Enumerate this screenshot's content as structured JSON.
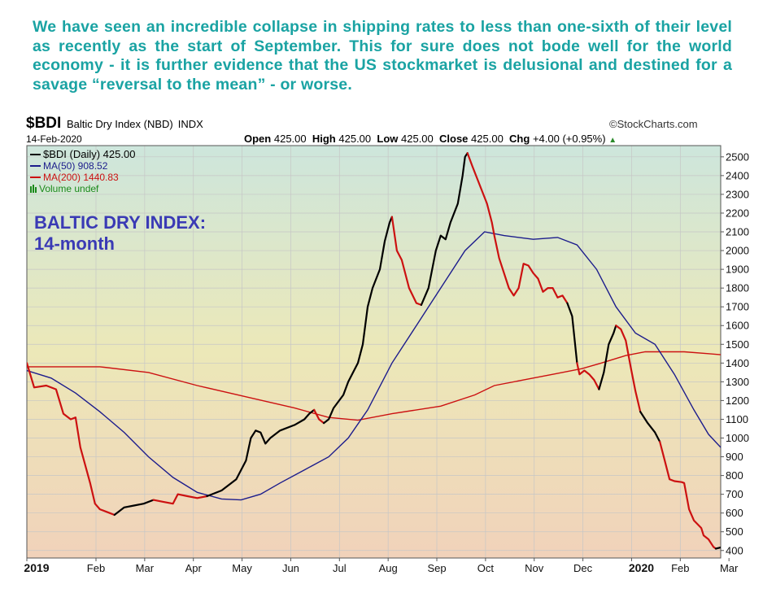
{
  "commentary": "We have seen an incredible collapse in shipping rates to less than one-sixth of their level as recently as the start of September. This for sure does not bode well for the world economy - it is further evidence that the US stockmarket is delusional and destined for a savage “reversal to the mean” - or worse.",
  "header": {
    "symbol": "$BDI",
    "name": "Baltic Dry Index (NBD)",
    "exchange": "INDX",
    "date": "14-Feb-2020",
    "credit": "©StockCharts.com",
    "open_label": "Open",
    "open": "425.00",
    "high_label": "High",
    "high": "425.00",
    "low_label": "Low",
    "low": "425.00",
    "close_label": "Close",
    "close": "425.00",
    "chg_label": "Chg",
    "chg": "+4.00 (+0.95%)"
  },
  "legend": {
    "items": [
      {
        "label": "$BDI (Daily) 425.00",
        "color": "#000000"
      },
      {
        "label": "MA(50) 908.52",
        "color": "#1c1c8c"
      },
      {
        "label": "MA(200) 1440.83",
        "color": "#cc1111"
      },
      {
        "label": "Volume undef",
        "color": "#1a8a1a"
      }
    ]
  },
  "chart_data": {
    "type": "line",
    "title": "BALTIC DRY INDEX:",
    "subtitle": "14-month",
    "title_color": "#3a3ab5",
    "ylim": [
      360,
      2560
    ],
    "yticks": [
      400,
      500,
      600,
      700,
      800,
      900,
      1000,
      1100,
      1200,
      1300,
      1400,
      1500,
      1600,
      1700,
      1800,
      1900,
      2000,
      2100,
      2200,
      2300,
      2400,
      2500
    ],
    "xlim": [
      0,
      14.25
    ],
    "xticks": [
      {
        "pos": 0,
        "label": "2019",
        "bold": true
      },
      {
        "pos": 1.42,
        "label": "Feb"
      },
      {
        "pos": 2.42,
        "label": "Mar"
      },
      {
        "pos": 3.42,
        "label": "Apr"
      },
      {
        "pos": 4.42,
        "label": "May"
      },
      {
        "pos": 5.42,
        "label": "Jun"
      },
      {
        "pos": 6.42,
        "label": "Jul"
      },
      {
        "pos": 7.42,
        "label": "Aug"
      },
      {
        "pos": 8.42,
        "label": "Sep"
      },
      {
        "pos": 9.42,
        "label": "Oct"
      },
      {
        "pos": 10.42,
        "label": "Nov"
      },
      {
        "pos": 11.42,
        "label": "Dec"
      },
      {
        "pos": 12.42,
        "label": "2020",
        "bold": true
      },
      {
        "pos": 13.42,
        "label": "Feb"
      },
      {
        "pos": 14.42,
        "label": "Mar"
      }
    ],
    "series": [
      {
        "name": "$BDI (Daily)",
        "segments": [
          {
            "color": "#cc1111",
            "points": [
              [
                0,
                1400
              ],
              [
                0.15,
                1270
              ],
              [
                0.4,
                1280
              ],
              [
                0.6,
                1260
              ],
              [
                0.75,
                1130
              ],
              [
                0.9,
                1100
              ],
              [
                1.0,
                1110
              ],
              [
                1.1,
                950
              ],
              [
                1.3,
                760
              ],
              [
                1.4,
                650
              ],
              [
                1.5,
                620
              ],
              [
                1.7,
                600
              ],
              [
                1.8,
                590
              ]
            ]
          },
          {
            "color": "#000000",
            "points": [
              [
                1.8,
                590
              ],
              [
                2.0,
                630
              ],
              [
                2.2,
                640
              ],
              [
                2.4,
                650
              ],
              [
                2.6,
                670
              ]
            ]
          },
          {
            "color": "#cc1111",
            "points": [
              [
                2.6,
                670
              ],
              [
                2.8,
                660
              ],
              [
                3.0,
                650
              ],
              [
                3.1,
                700
              ],
              [
                3.3,
                690
              ],
              [
                3.5,
                680
              ],
              [
                3.7,
                690
              ]
            ]
          },
          {
            "color": "#000000",
            "points": [
              [
                3.7,
                690
              ],
              [
                4.0,
                720
              ],
              [
                4.3,
                780
              ],
              [
                4.5,
                880
              ],
              [
                4.6,
                1000
              ],
              [
                4.7,
                1040
              ],
              [
                4.8,
                1030
              ],
              [
                4.9,
                970
              ],
              [
                5.0,
                1000
              ],
              [
                5.2,
                1040
              ],
              [
                5.5,
                1070
              ],
              [
                5.7,
                1100
              ],
              [
                5.8,
                1130
              ],
              [
                5.9,
                1150
              ]
            ]
          },
          {
            "color": "#cc1111",
            "points": [
              [
                5.9,
                1150
              ],
              [
                6.0,
                1100
              ],
              [
                6.1,
                1080
              ]
            ]
          },
          {
            "color": "#000000",
            "points": [
              [
                6.1,
                1080
              ],
              [
                6.2,
                1100
              ],
              [
                6.3,
                1160
              ],
              [
                6.5,
                1230
              ],
              [
                6.6,
                1300
              ],
              [
                6.8,
                1400
              ],
              [
                6.9,
                1500
              ],
              [
                7.0,
                1700
              ],
              [
                7.1,
                1800
              ],
              [
                7.25,
                1900
              ],
              [
                7.35,
                2050
              ],
              [
                7.45,
                2150
              ],
              [
                7.5,
                2180
              ]
            ]
          },
          {
            "color": "#cc1111",
            "points": [
              [
                7.5,
                2180
              ],
              [
                7.6,
                2000
              ],
              [
                7.7,
                1950
              ],
              [
                7.85,
                1800
              ],
              [
                8.0,
                1720
              ],
              [
                8.1,
                1710
              ]
            ]
          },
          {
            "color": "#000000",
            "points": [
              [
                8.1,
                1710
              ],
              [
                8.25,
                1800
              ],
              [
                8.4,
                2000
              ],
              [
                8.5,
                2080
              ],
              [
                8.6,
                2060
              ],
              [
                8.7,
                2150
              ],
              [
                8.85,
                2250
              ],
              [
                8.95,
                2400
              ],
              [
                9.0,
                2500
              ],
              [
                9.05,
                2520
              ]
            ]
          },
          {
            "color": "#cc1111",
            "points": [
              [
                9.05,
                2520
              ],
              [
                9.15,
                2450
              ],
              [
                9.3,
                2350
              ],
              [
                9.45,
                2250
              ],
              [
                9.55,
                2150
              ],
              [
                9.6,
                2080
              ],
              [
                9.7,
                1960
              ],
              [
                9.8,
                1880
              ],
              [
                9.9,
                1800
              ],
              [
                10.0,
                1760
              ],
              [
                10.1,
                1800
              ],
              [
                10.2,
                1930
              ],
              [
                10.3,
                1920
              ],
              [
                10.4,
                1880
              ],
              [
                10.5,
                1850
              ],
              [
                10.6,
                1780
              ],
              [
                10.7,
                1800
              ],
              [
                10.8,
                1800
              ],
              [
                10.9,
                1750
              ],
              [
                11.0,
                1760
              ],
              [
                11.1,
                1720
              ]
            ]
          },
          {
            "color": "#000000",
            "points": [
              [
                11.1,
                1720
              ],
              [
                11.2,
                1650
              ],
              [
                11.3,
                1400
              ]
            ]
          },
          {
            "color": "#cc1111",
            "points": [
              [
                11.3,
                1400
              ],
              [
                11.35,
                1340
              ],
              [
                11.45,
                1360
              ],
              [
                11.55,
                1340
              ],
              [
                11.65,
                1310
              ],
              [
                11.75,
                1260
              ]
            ]
          },
          {
            "color": "#000000",
            "points": [
              [
                11.75,
                1260
              ],
              [
                11.85,
                1350
              ],
              [
                11.95,
                1500
              ],
              [
                12.05,
                1560
              ],
              [
                12.1,
                1600
              ]
            ]
          },
          {
            "color": "#cc1111",
            "points": [
              [
                12.1,
                1600
              ],
              [
                12.2,
                1580
              ],
              [
                12.3,
                1520
              ],
              [
                12.4,
                1380
              ],
              [
                12.5,
                1250
              ],
              [
                12.6,
                1140
              ]
            ]
          },
          {
            "color": "#000000",
            "points": [
              [
                12.6,
                1140
              ],
              [
                12.75,
                1080
              ],
              [
                12.9,
                1030
              ],
              [
                13.0,
                980
              ]
            ]
          },
          {
            "color": "#cc1111",
            "points": [
              [
                13.0,
                980
              ],
              [
                13.1,
                880
              ],
              [
                13.2,
                780
              ],
              [
                13.3,
                770
              ],
              [
                13.45,
                765
              ],
              [
                13.5,
                760
              ],
              [
                13.6,
                620
              ],
              [
                13.7,
                560
              ],
              [
                13.85,
                520
              ],
              [
                13.9,
                480
              ],
              [
                14.0,
                460
              ],
              [
                14.1,
                420
              ],
              [
                14.15,
                410
              ]
            ]
          },
          {
            "color": "#000000",
            "points": [
              [
                14.15,
                410
              ],
              [
                14.3,
                420
              ],
              [
                14.45,
                425
              ]
            ]
          }
        ]
      },
      {
        "name": "MA(50)",
        "color": "#1c1c8c",
        "points": [
          [
            0,
            1360
          ],
          [
            0.5,
            1320
          ],
          [
            1.0,
            1240
          ],
          [
            1.5,
            1140
          ],
          [
            2.0,
            1030
          ],
          [
            2.5,
            900
          ],
          [
            3.0,
            790
          ],
          [
            3.5,
            710
          ],
          [
            4.0,
            675
          ],
          [
            4.4,
            670
          ],
          [
            4.8,
            700
          ],
          [
            5.2,
            760
          ],
          [
            5.7,
            830
          ],
          [
            6.2,
            900
          ],
          [
            6.6,
            1000
          ],
          [
            7.0,
            1150
          ],
          [
            7.5,
            1400
          ],
          [
            8.0,
            1600
          ],
          [
            8.5,
            1800
          ],
          [
            9.0,
            2000
          ],
          [
            9.4,
            2100
          ],
          [
            9.8,
            2080
          ],
          [
            10.4,
            2060
          ],
          [
            10.9,
            2070
          ],
          [
            11.3,
            2030
          ],
          [
            11.7,
            1900
          ],
          [
            12.1,
            1700
          ],
          [
            12.5,
            1560
          ],
          [
            12.9,
            1500
          ],
          [
            13.3,
            1340
          ],
          [
            13.7,
            1150
          ],
          [
            14.0,
            1020
          ],
          [
            14.4,
            908
          ]
        ]
      },
      {
        "name": "MA(200)",
        "color": "#cc1111",
        "points": [
          [
            0,
            1380
          ],
          [
            1.5,
            1380
          ],
          [
            2.5,
            1350
          ],
          [
            3.5,
            1280
          ],
          [
            4.5,
            1220
          ],
          [
            5.5,
            1160
          ],
          [
            6.2,
            1110
          ],
          [
            6.8,
            1095
          ],
          [
            7.5,
            1130
          ],
          [
            8.5,
            1170
          ],
          [
            9.2,
            1230
          ],
          [
            9.6,
            1280
          ],
          [
            10.2,
            1310
          ],
          [
            10.8,
            1340
          ],
          [
            11.4,
            1370
          ],
          [
            11.8,
            1400
          ],
          [
            12.3,
            1440
          ],
          [
            12.7,
            1460
          ],
          [
            13.5,
            1460
          ],
          [
            14.0,
            1450
          ],
          [
            14.45,
            1440
          ]
        ]
      }
    ]
  }
}
